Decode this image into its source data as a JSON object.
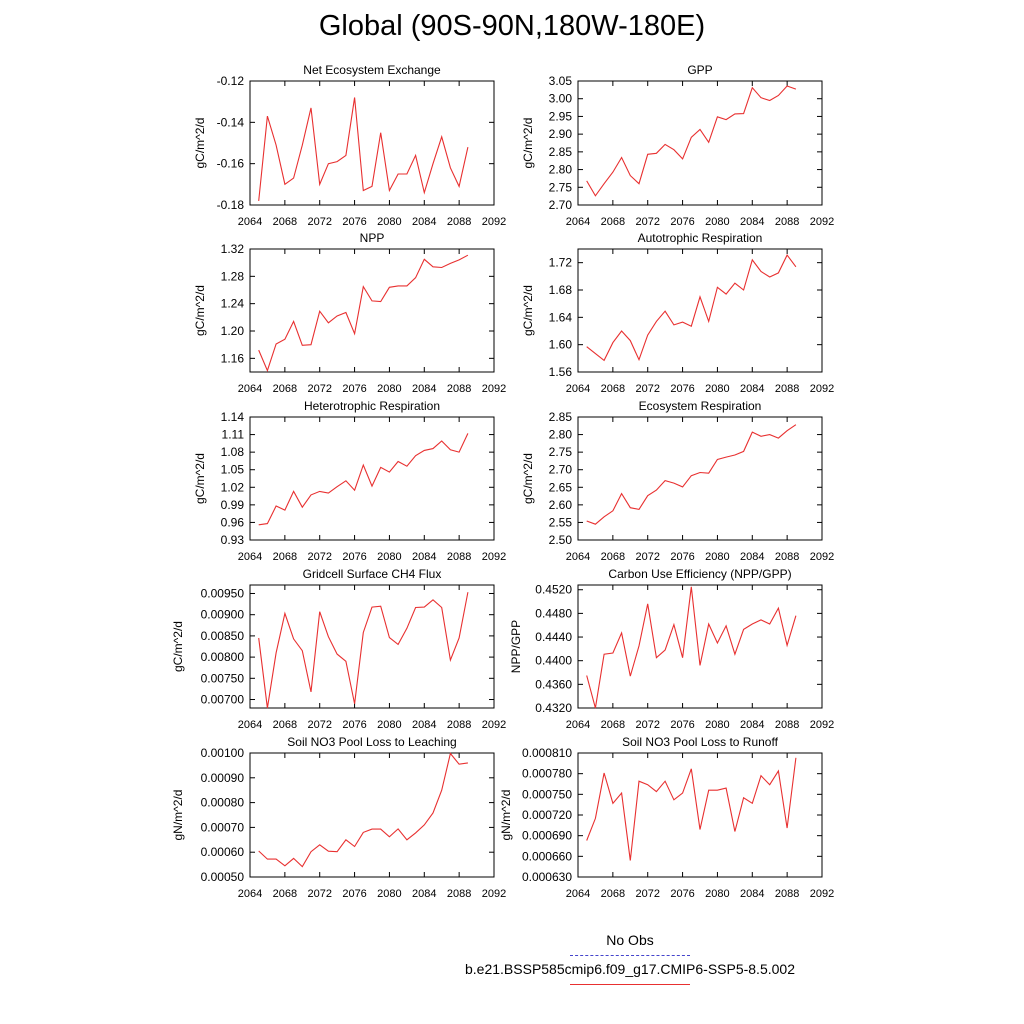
{
  "title": "Global (90S-90N,180W-180E)",
  "legend": {
    "obs_label": "No Obs",
    "run_label": "b.e21.BSSP585cmip6.f09_g17.CMIP6-SSP5-8.5.002",
    "obs_color": "#4444cc",
    "run_color": "#e83030"
  },
  "chart_data": [
    {
      "type": "line",
      "title": "Net Ecosystem Exchange",
      "xlabel": "",
      "ylabel": "gC/m^2/d",
      "xlim": [
        2064,
        2092
      ],
      "ylim": [
        -0.18,
        -0.12
      ],
      "xticks": [
        2064,
        2068,
        2072,
        2076,
        2080,
        2084,
        2088,
        2092
      ],
      "xtick_labels": [
        "2064",
        "2068",
        "2072",
        "2076",
        "2080",
        "2084",
        "2088",
        "2092"
      ],
      "yticks": [
        -0.18,
        -0.16,
        -0.14,
        -0.12
      ],
      "ytick_labels": [
        "-0.18",
        "-0.16",
        "-0.14",
        "-0.12"
      ],
      "x": [
        2065,
        2066,
        2067,
        2068,
        2069,
        2070,
        2071,
        2072,
        2073,
        2074,
        2075,
        2076,
        2077,
        2078,
        2079,
        2080,
        2081,
        2082,
        2083,
        2084,
        2085,
        2086,
        2087,
        2088,
        2089
      ],
      "values": [
        -0.178,
        -0.137,
        -0.151,
        -0.17,
        -0.167,
        -0.151,
        -0.133,
        -0.17,
        -0.16,
        -0.159,
        -0.156,
        -0.128,
        -0.173,
        -0.171,
        -0.145,
        -0.173,
        -0.165,
        -0.165,
        -0.156,
        -0.174,
        -0.16,
        -0.147,
        -0.162,
        -0.171,
        -0.152
      ]
    },
    {
      "type": "line",
      "title": "GPP",
      "xlabel": "",
      "ylabel": "gC/m^2/d",
      "xlim": [
        2064,
        2092
      ],
      "ylim": [
        2.7,
        3.05
      ],
      "xticks": [
        2064,
        2068,
        2072,
        2076,
        2080,
        2084,
        2088,
        2092
      ],
      "xtick_labels": [
        "2064",
        "2068",
        "2072",
        "2076",
        "2080",
        "2084",
        "2088",
        "2092"
      ],
      "yticks": [
        2.7,
        2.75,
        2.8,
        2.85,
        2.9,
        2.95,
        3.0,
        3.05
      ],
      "ytick_labels": [
        "2.70",
        "2.75",
        "2.80",
        "2.85",
        "2.90",
        "2.95",
        "3.00",
        "3.05"
      ],
      "x": [
        2065,
        2066,
        2067,
        2068,
        2069,
        2070,
        2071,
        2072,
        2073,
        2074,
        2075,
        2076,
        2077,
        2078,
        2079,
        2080,
        2081,
        2082,
        2083,
        2084,
        2085,
        2086,
        2087,
        2088,
        2089
      ],
      "values": [
        2.768,
        2.726,
        2.76,
        2.793,
        2.834,
        2.783,
        2.76,
        2.843,
        2.846,
        2.871,
        2.856,
        2.83,
        2.891,
        2.913,
        2.877,
        2.949,
        2.941,
        2.957,
        2.958,
        3.031,
        3.003,
        2.995,
        3.009,
        3.036,
        3.027
      ]
    },
    {
      "type": "line",
      "title": "NPP",
      "xlabel": "",
      "ylabel": "gC/m^2/d",
      "xlim": [
        2064,
        2092
      ],
      "ylim": [
        1.14,
        1.32
      ],
      "xticks": [
        2064,
        2068,
        2072,
        2076,
        2080,
        2084,
        2088,
        2092
      ],
      "xtick_labels": [
        "2064",
        "2068",
        "2072",
        "2076",
        "2080",
        "2084",
        "2088",
        "2092"
      ],
      "yticks": [
        1.16,
        1.2,
        1.24,
        1.28,
        1.32
      ],
      "ytick_labels": [
        "1.16",
        "1.20",
        "1.24",
        "1.28",
        "1.32"
      ],
      "x": [
        2065,
        2066,
        2067,
        2068,
        2069,
        2070,
        2071,
        2072,
        2073,
        2074,
        2075,
        2076,
        2077,
        2078,
        2079,
        2080,
        2081,
        2082,
        2083,
        2084,
        2085,
        2086,
        2087,
        2088,
        2089
      ],
      "values": [
        1.172,
        1.142,
        1.181,
        1.188,
        1.214,
        1.179,
        1.18,
        1.229,
        1.212,
        1.222,
        1.227,
        1.196,
        1.265,
        1.244,
        1.243,
        1.264,
        1.266,
        1.266,
        1.278,
        1.305,
        1.294,
        1.293,
        1.299,
        1.304,
        1.311
      ]
    },
    {
      "type": "line",
      "title": "Autotrophic Respiration",
      "xlabel": "",
      "ylabel": "gC/m^2/d",
      "xlim": [
        2064,
        2092
      ],
      "ylim": [
        1.56,
        1.74
      ],
      "xticks": [
        2064,
        2068,
        2072,
        2076,
        2080,
        2084,
        2088,
        2092
      ],
      "xtick_labels": [
        "2064",
        "2068",
        "2072",
        "2076",
        "2080",
        "2084",
        "2088",
        "2092"
      ],
      "yticks": [
        1.56,
        1.6,
        1.64,
        1.68,
        1.72
      ],
      "ytick_labels": [
        "1.56",
        "1.60",
        "1.64",
        "1.68",
        "1.72"
      ],
      "x": [
        2065,
        2066,
        2067,
        2068,
        2069,
        2070,
        2071,
        2072,
        2073,
        2074,
        2075,
        2076,
        2077,
        2078,
        2079,
        2080,
        2081,
        2082,
        2083,
        2084,
        2085,
        2086,
        2087,
        2088,
        2089
      ],
      "values": [
        1.597,
        1.587,
        1.577,
        1.603,
        1.62,
        1.606,
        1.578,
        1.614,
        1.634,
        1.649,
        1.629,
        1.633,
        1.627,
        1.67,
        1.634,
        1.684,
        1.674,
        1.69,
        1.68,
        1.724,
        1.707,
        1.699,
        1.705,
        1.731,
        1.714
      ]
    },
    {
      "type": "line",
      "title": "Heterotrophic Respiration",
      "xlabel": "",
      "ylabel": "gC/m^2/d",
      "xlim": [
        2064,
        2092
      ],
      "ylim": [
        0.93,
        1.14
      ],
      "xticks": [
        2064,
        2068,
        2072,
        2076,
        2080,
        2084,
        2088,
        2092
      ],
      "xtick_labels": [
        "2064",
        "2068",
        "2072",
        "2076",
        "2080",
        "2084",
        "2088",
        "2092"
      ],
      "yticks": [
        0.93,
        0.96,
        0.99,
        1.02,
        1.05,
        1.08,
        1.11,
        1.14
      ],
      "ytick_labels": [
        "0.93",
        "0.96",
        "0.99",
        "1.02",
        "1.05",
        "1.08",
        "1.11",
        "1.14"
      ],
      "x": [
        2065,
        2066,
        2067,
        2068,
        2069,
        2070,
        2071,
        2072,
        2073,
        2074,
        2075,
        2076,
        2077,
        2078,
        2079,
        2080,
        2081,
        2082,
        2083,
        2084,
        2085,
        2086,
        2087,
        2088,
        2089
      ],
      "values": [
        0.956,
        0.958,
        0.988,
        0.981,
        1.013,
        0.986,
        1.007,
        1.013,
        1.01,
        1.021,
        1.031,
        1.015,
        1.058,
        1.022,
        1.054,
        1.046,
        1.064,
        1.056,
        1.074,
        1.083,
        1.086,
        1.099,
        1.084,
        1.08,
        1.112
      ]
    },
    {
      "type": "line",
      "title": "Ecosystem Respiration",
      "xlabel": "",
      "ylabel": "gC/m^2/d",
      "xlim": [
        2064,
        2092
      ],
      "ylim": [
        2.5,
        2.85
      ],
      "xticks": [
        2064,
        2068,
        2072,
        2076,
        2080,
        2084,
        2088,
        2092
      ],
      "xtick_labels": [
        "2064",
        "2068",
        "2072",
        "2076",
        "2080",
        "2084",
        "2088",
        "2092"
      ],
      "yticks": [
        2.5,
        2.55,
        2.6,
        2.65,
        2.7,
        2.75,
        2.8,
        2.85
      ],
      "ytick_labels": [
        "2.50",
        "2.55",
        "2.60",
        "2.65",
        "2.70",
        "2.75",
        "2.80",
        "2.85"
      ],
      "x": [
        2065,
        2066,
        2067,
        2068,
        2069,
        2070,
        2071,
        2072,
        2073,
        2074,
        2075,
        2076,
        2077,
        2078,
        2079,
        2080,
        2081,
        2082,
        2083,
        2084,
        2085,
        2086,
        2087,
        2088,
        2089
      ],
      "values": [
        2.554,
        2.545,
        2.566,
        2.583,
        2.632,
        2.592,
        2.587,
        2.626,
        2.642,
        2.669,
        2.662,
        2.651,
        2.683,
        2.692,
        2.69,
        2.729,
        2.736,
        2.742,
        2.752,
        2.807,
        2.795,
        2.8,
        2.79,
        2.811,
        2.828
      ]
    },
    {
      "type": "line",
      "title": "Gridcell Surface CH4 Flux",
      "xlabel": "",
      "ylabel": "gC/m^2/d",
      "xlim": [
        2064,
        2092
      ],
      "ylim": [
        0.0068,
        0.0097
      ],
      "xticks": [
        2064,
        2068,
        2072,
        2076,
        2080,
        2084,
        2088,
        2092
      ],
      "xtick_labels": [
        "2064",
        "2068",
        "2072",
        "2076",
        "2080",
        "2084",
        "2088",
        "2092"
      ],
      "yticks": [
        0.007,
        0.0075,
        0.008,
        0.0085,
        0.009,
        0.0095
      ],
      "ytick_labels": [
        "0.00700",
        "0.00750",
        "0.00800",
        "0.00850",
        "0.00900",
        "0.00950"
      ],
      "x": [
        2065,
        2066,
        2067,
        2068,
        2069,
        2070,
        2071,
        2072,
        2073,
        2074,
        2075,
        2076,
        2077,
        2078,
        2079,
        2080,
        2081,
        2082,
        2083,
        2084,
        2085,
        2086,
        2087,
        2088,
        2089
      ],
      "values": [
        0.00845,
        0.0068,
        0.0081,
        0.00903,
        0.00843,
        0.00815,
        0.00718,
        0.00907,
        0.00848,
        0.00807,
        0.0079,
        0.0069,
        0.00858,
        0.00918,
        0.0092,
        0.00846,
        0.0083,
        0.00868,
        0.00917,
        0.00918,
        0.00935,
        0.00917,
        0.00793,
        0.00845,
        0.00953
      ]
    },
    {
      "type": "line",
      "title": "Carbon Use Efficiency (NPP/GPP)",
      "xlabel": "",
      "ylabel": "NPP/GPP",
      "xlim": [
        2064,
        2092
      ],
      "ylim": [
        0.432,
        0.4528
      ],
      "xticks": [
        2064,
        2068,
        2072,
        2076,
        2080,
        2084,
        2088,
        2092
      ],
      "xtick_labels": [
        "2064",
        "2068",
        "2072",
        "2076",
        "2080",
        "2084",
        "2088",
        "2092"
      ],
      "yticks": [
        0.432,
        0.436,
        0.44,
        0.444,
        0.448,
        0.452
      ],
      "ytick_labels": [
        "0.4320",
        "0.4360",
        "0.4400",
        "0.4440",
        "0.4480",
        "0.4520"
      ],
      "x": [
        2065,
        2066,
        2067,
        2068,
        2069,
        2070,
        2071,
        2072,
        2073,
        2074,
        2075,
        2076,
        2077,
        2078,
        2079,
        2080,
        2081,
        2082,
        2083,
        2084,
        2085,
        2086,
        2087,
        2088,
        2089
      ],
      "values": [
        0.4375,
        0.432,
        0.4411,
        0.4413,
        0.4447,
        0.4374,
        0.4425,
        0.4496,
        0.4405,
        0.4418,
        0.4461,
        0.4405,
        0.4525,
        0.4392,
        0.4462,
        0.443,
        0.4459,
        0.4411,
        0.4453,
        0.4462,
        0.4469,
        0.4462,
        0.4489,
        0.4426,
        0.4476
      ]
    },
    {
      "type": "line",
      "title": "Soil NO3 Pool Loss to Leaching",
      "xlabel": "",
      "ylabel": "gN/m^2/d",
      "xlim": [
        2064,
        2092
      ],
      "ylim": [
        0.0005,
        0.001
      ],
      "xticks": [
        2064,
        2068,
        2072,
        2076,
        2080,
        2084,
        2088,
        2092
      ],
      "xtick_labels": [
        "2064",
        "2068",
        "2072",
        "2076",
        "2080",
        "2084",
        "2088",
        "2092"
      ],
      "yticks": [
        0.0005,
        0.0006,
        0.0007,
        0.0008,
        0.0009,
        0.001
      ],
      "ytick_labels": [
        "0.00050",
        "0.00060",
        "0.00070",
        "0.00080",
        "0.00090",
        "0.00100"
      ],
      "x": [
        2065,
        2066,
        2067,
        2068,
        2069,
        2070,
        2071,
        2072,
        2073,
        2074,
        2075,
        2076,
        2077,
        2078,
        2079,
        2080,
        2081,
        2082,
        2083,
        2084,
        2085,
        2086,
        2087,
        2088,
        2089
      ],
      "values": [
        0.000605,
        0.000572,
        0.000572,
        0.000545,
        0.000575,
        0.000542,
        0.000602,
        0.00063,
        0.000604,
        0.000602,
        0.00065,
        0.000623,
        0.00068,
        0.000693,
        0.000693,
        0.000662,
        0.000694,
        0.00065,
        0.000678,
        0.00071,
        0.000758,
        0.00085,
        0.000998,
        0.000955,
        0.00096
      ]
    },
    {
      "type": "line",
      "title": "Soil NO3 Pool Loss to Runoff",
      "xlabel": "",
      "ylabel": "gN/m^2/d",
      "xlim": [
        2064,
        2092
      ],
      "ylim": [
        0.00063,
        0.00081
      ],
      "xticks": [
        2064,
        2068,
        2072,
        2076,
        2080,
        2084,
        2088,
        2092
      ],
      "xtick_labels": [
        "2064",
        "2068",
        "2072",
        "2076",
        "2080",
        "2084",
        "2088",
        "2092"
      ],
      "yticks": [
        0.00063,
        0.00066,
        0.00069,
        0.00072,
        0.00075,
        0.00078,
        0.00081
      ],
      "ytick_labels": [
        "0.000630",
        "0.000660",
        "0.000690",
        "0.000720",
        "0.000750",
        "0.000780",
        "0.000810"
      ],
      "x": [
        2065,
        2066,
        2067,
        2068,
        2069,
        2070,
        2071,
        2072,
        2073,
        2074,
        2075,
        2076,
        2077,
        2078,
        2079,
        2080,
        2081,
        2082,
        2083,
        2084,
        2085,
        2086,
        2087,
        2088,
        2089
      ],
      "values": [
        0.000683,
        0.000715,
        0.000781,
        0.000737,
        0.000752,
        0.000654,
        0.000769,
        0.000764,
        0.000754,
        0.000769,
        0.000742,
        0.000752,
        0.000787,
        0.000699,
        0.000756,
        0.000756,
        0.000759,
        0.000696,
        0.000745,
        0.000737,
        0.000777,
        0.000764,
        0.000784,
        0.000701,
        0.000803
      ]
    }
  ]
}
